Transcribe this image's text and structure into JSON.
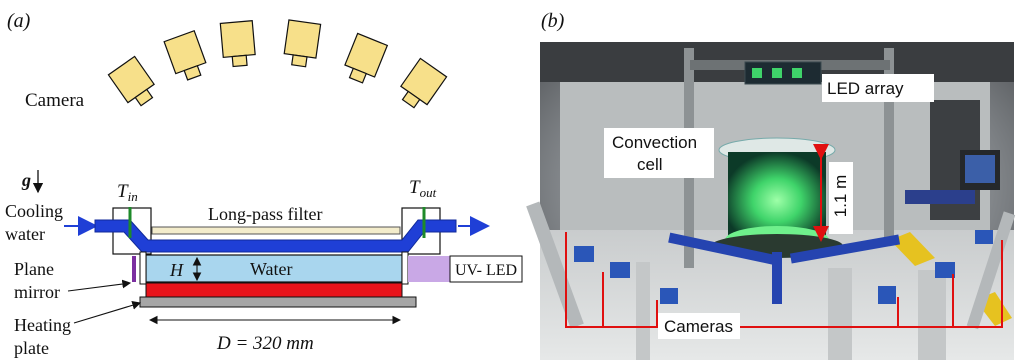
{
  "panel_a": {
    "label": "(a)",
    "camera_label": "Camera",
    "gravity_label": "g",
    "t_in_label": "T",
    "t_in_sub": "in",
    "t_out_label": "T",
    "t_out_sub": "out",
    "cooling_water_line1": "Cooling",
    "cooling_water_line2": "water",
    "filter_label": "Long-pass filter",
    "plane_mirror_line1": "Plane",
    "plane_mirror_line2": "mirror",
    "height_label": "H",
    "water_label": "Water",
    "uv_led_label": "UV- LED",
    "heating_plate_line1": "Heating",
    "heating_plate_line2": "plate",
    "diameter_label": "D = 320 mm",
    "colors": {
      "camera": "#f7e08a",
      "cooling": "#1f3fd6",
      "water": "#a9d6ee",
      "heater": "#e8141b",
      "base": "#a6a6a6",
      "uv_led": "#c9a8e6",
      "mirror": "#7b2fa0",
      "thermo": "#1e8a2a",
      "filter": "#f3eccb"
    }
  },
  "panel_b": {
    "label": "(b)",
    "led_array_label": "LED array",
    "convection_line1": "Convection",
    "convection_line2": "cell",
    "height_label": "1.1 m",
    "cameras_label": "Cameras",
    "colors": {
      "annotation": "#e01010",
      "glow": "#46d66e"
    }
  }
}
